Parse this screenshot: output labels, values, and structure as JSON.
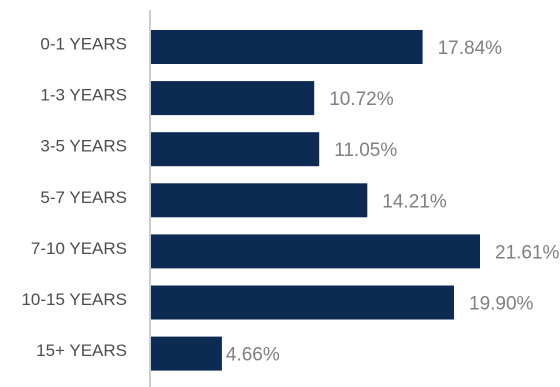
{
  "chart_data": {
    "type": "bar",
    "orientation": "horizontal",
    "categories": [
      "0-1 YEARS",
      "1-3 YEARS",
      "3-5 YEARS",
      "5-7 YEARS",
      "7-10 YEARS",
      "10-15 YEARS",
      "15+ YEARS"
    ],
    "values": [
      17.84,
      10.72,
      11.05,
      14.21,
      21.61,
      19.9,
      4.66
    ],
    "value_labels": [
      "17.84%",
      "10.72%",
      "11.05%",
      "14.21%",
      "21.61%",
      "19.90%",
      "4.66%"
    ],
    "unit": "%",
    "xlim": [
      0,
      21.61
    ],
    "grid": false,
    "legend": "none",
    "colors": {
      "bar": "#0d2a52",
      "category_text": "#4d4d4d",
      "value_text": "#808080",
      "axis": "#9a9a9a"
    }
  }
}
